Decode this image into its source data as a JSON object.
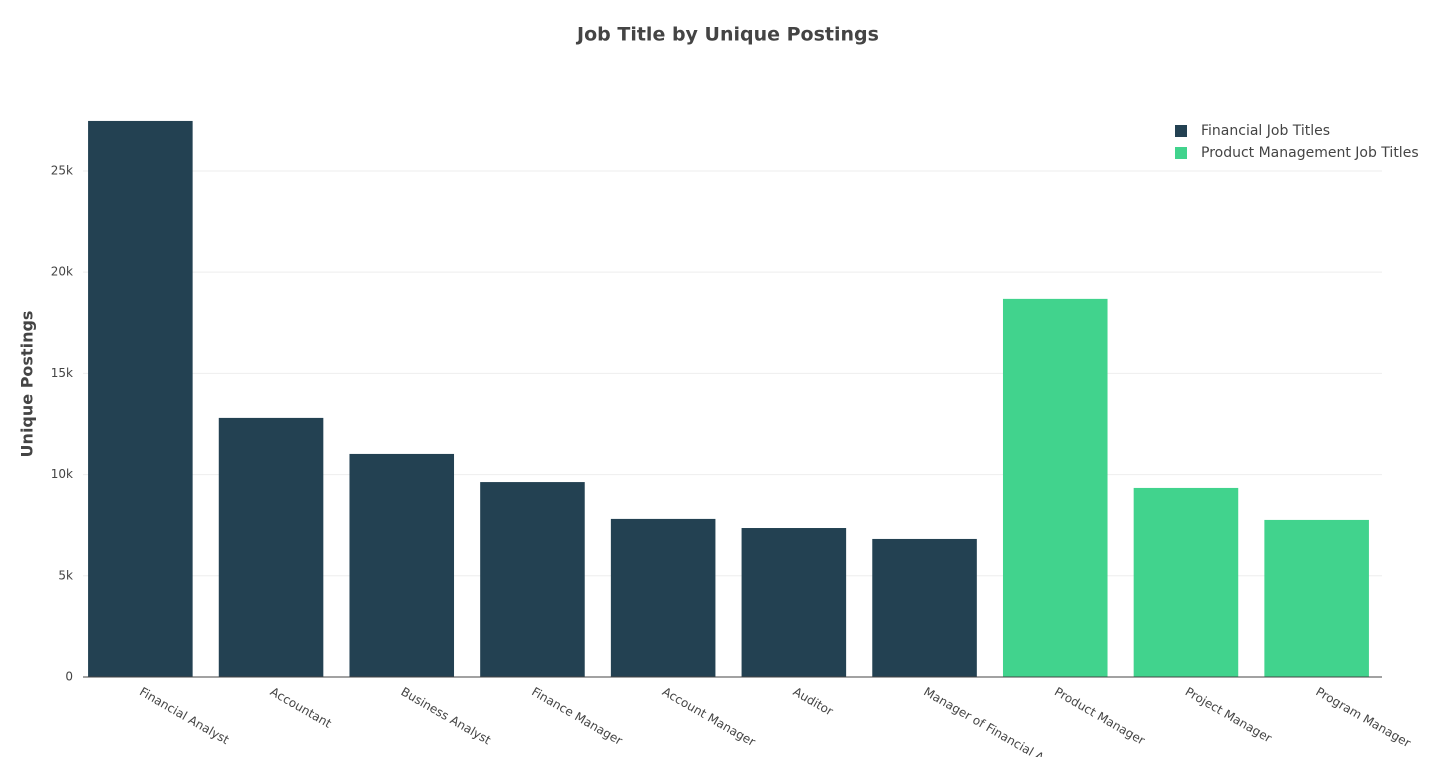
{
  "chart_data": {
    "type": "bar",
    "title": "Job Title by Unique Postings",
    "y_label": "Unique Postings",
    "categories": [
      "Financial Analyst",
      "Accountant",
      "Business Analyst",
      "Finance Manager",
      "Account Manager",
      "Auditor",
      "Manager of Financial Anal",
      "Product Manager",
      "Project Manager",
      "Program Manager"
    ],
    "series": [
      {
        "name": "Financial Job Titles",
        "color": "#234152",
        "values": [
          27470,
          12800,
          11020,
          9630,
          7810,
          7360,
          6820,
          null,
          null,
          null
        ]
      },
      {
        "name": "Product Management Job Titles",
        "color": "#41d38d",
        "values": [
          null,
          null,
          null,
          null,
          null,
          null,
          null,
          18680,
          9340,
          7760
        ]
      }
    ],
    "ylim": [
      0,
      28900
    ],
    "yticks": [
      0,
      {
        "value": 5000,
        "label": "5k"
      },
      {
        "value": 10000,
        "label": "10k"
      },
      {
        "value": 15000,
        "label": "15k"
      },
      {
        "value": 20000,
        "label": "20k"
      },
      {
        "value": 25000,
        "label": "25k"
      }
    ],
    "grid": true,
    "legend": "top-right"
  }
}
